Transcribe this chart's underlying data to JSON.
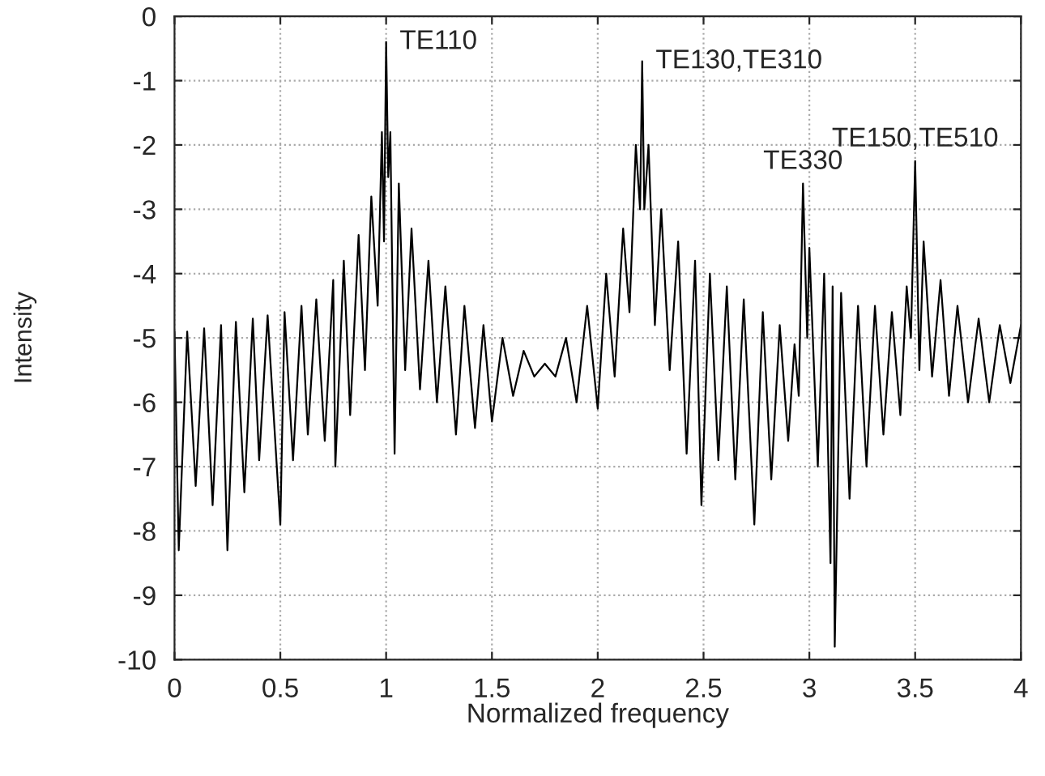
{
  "chart_data": {
    "type": "line",
    "xlabel": "Normalized frequency",
    "ylabel": "Intensity",
    "xlim": [
      0,
      4
    ],
    "ylim": [
      -10,
      0
    ],
    "xticks": [
      0,
      0.5,
      1,
      1.5,
      2,
      2.5,
      3,
      3.5,
      4
    ],
    "yticks": [
      -10,
      -9,
      -8,
      -7,
      -6,
      -5,
      -4,
      -3,
      -2,
      -1,
      0
    ],
    "grid": true,
    "line_style": "solid",
    "marker": "none",
    "annotations": [
      {
        "text": "TE110",
        "x": 1.0,
        "y": -0.4
      },
      {
        "text": "TE130,TE310",
        "x": 2.21,
        "y": -0.7
      },
      {
        "text": "TE330",
        "x": 2.97,
        "y": -2.6
      },
      {
        "text": "TE150,TE510",
        "x": 3.5,
        "y": -2.25
      }
    ],
    "series": [
      {
        "color": "#000000",
        "x": [
          0,
          0.02,
          0.06,
          0.1,
          0.14,
          0.18,
          0.22,
          0.25,
          0.29,
          0.33,
          0.37,
          0.4,
          0.44,
          0.5,
          0.52,
          0.56,
          0.6,
          0.63,
          0.67,
          0.71,
          0.75,
          0.76,
          0.8,
          0.83,
          0.87,
          0.9,
          0.93,
          0.96,
          0.98,
          0.99,
          1.0,
          1.01,
          1.02,
          1.04,
          1.06,
          1.09,
          1.12,
          1.16,
          1.2,
          1.24,
          1.28,
          1.33,
          1.37,
          1.42,
          1.46,
          1.5,
          1.55,
          1.6,
          1.65,
          1.7,
          1.75,
          1.8,
          1.85,
          1.9,
          1.95,
          2.0,
          2.04,
          2.08,
          2.12,
          2.15,
          2.18,
          2.2,
          2.21,
          2.22,
          2.24,
          2.27,
          2.3,
          2.34,
          2.38,
          2.42,
          2.46,
          2.49,
          2.53,
          2.57,
          2.61,
          2.65,
          2.69,
          2.74,
          2.78,
          2.82,
          2.86,
          2.9,
          2.93,
          2.95,
          2.97,
          2.99,
          3.0,
          3.04,
          3.07,
          3.1,
          3.11,
          3.12,
          3.15,
          3.19,
          3.23,
          3.27,
          3.31,
          3.35,
          3.39,
          3.43,
          3.46,
          3.48,
          3.5,
          3.52,
          3.54,
          3.58,
          3.62,
          3.66,
          3.7,
          3.75,
          3.8,
          3.85,
          3.9,
          3.95,
          4.0
        ],
        "values": [
          -4.9,
          -8.3,
          -4.9,
          -7.3,
          -4.85,
          -7.6,
          -4.8,
          -8.3,
          -4.75,
          -7.4,
          -4.7,
          -6.9,
          -4.65,
          -7.9,
          -4.6,
          -6.9,
          -4.5,
          -6.5,
          -4.4,
          -6.6,
          -4.1,
          -7.0,
          -3.8,
          -6.2,
          -3.4,
          -5.5,
          -2.8,
          -4.5,
          -1.8,
          -3.5,
          -0.4,
          -2.5,
          -1.8,
          -6.8,
          -2.6,
          -5.5,
          -3.3,
          -5.8,
          -3.8,
          -6.0,
          -4.2,
          -6.5,
          -4.5,
          -6.4,
          -4.8,
          -6.3,
          -5.0,
          -5.9,
          -5.2,
          -5.6,
          -5.4,
          -5.6,
          -5.0,
          -6.0,
          -4.5,
          -6.1,
          -4.0,
          -5.6,
          -3.3,
          -4.6,
          -2.0,
          -3.0,
          -0.7,
          -3.0,
          -2.0,
          -4.8,
          -3.0,
          -5.5,
          -3.5,
          -6.8,
          -3.8,
          -7.6,
          -4.0,
          -6.9,
          -4.2,
          -7.2,
          -4.4,
          -7.9,
          -4.6,
          -7.2,
          -4.8,
          -6.6,
          -5.1,
          -5.9,
          -2.6,
          -5.0,
          -3.6,
          -7.0,
          -4.0,
          -8.5,
          -4.2,
          -9.8,
          -4.3,
          -7.5,
          -4.5,
          -7.0,
          -4.5,
          -6.5,
          -4.6,
          -6.2,
          -4.2,
          -5.0,
          -2.25,
          -5.5,
          -3.5,
          -5.6,
          -4.1,
          -5.9,
          -4.5,
          -6.0,
          -4.7,
          -6.0,
          -4.8,
          -5.7,
          -4.8
        ]
      }
    ]
  }
}
